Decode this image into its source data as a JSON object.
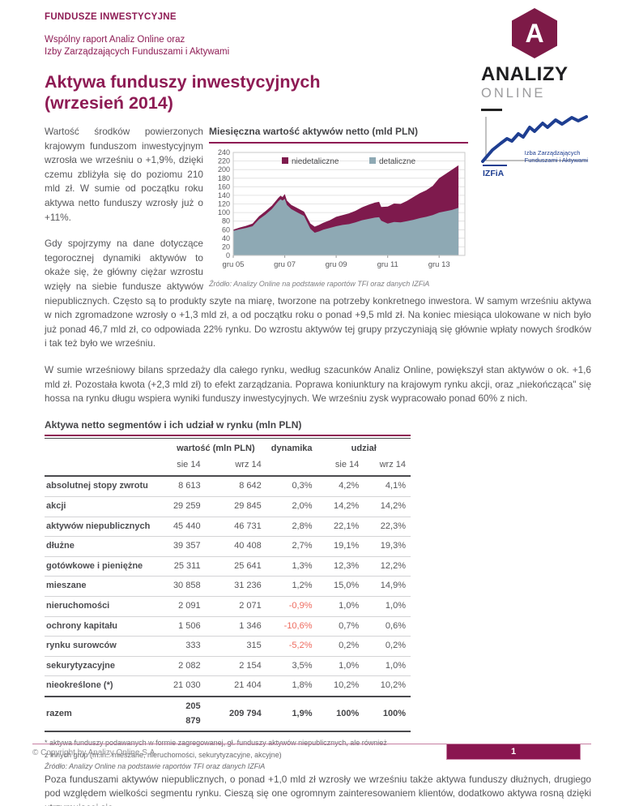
{
  "header": {
    "eyebrow": "FUNDUSZE INWESTYCYJNE",
    "subtitle_line1": "Wspólny raport Analiz Online oraz",
    "subtitle_line2": "Izby Zarządzających Funduszami i Aktywami",
    "title_line1": "Aktywa funduszy inwestycyjnych",
    "title_line2": "(wrzesień 2014)"
  },
  "logo": {
    "monogram": "A",
    "brand_top": "ANALIZY",
    "brand_bottom": "ONLINE"
  },
  "izfia": {
    "line1": "Izba Zarządzających",
    "line2": "Funduszami i Aktywami",
    "abbr": "IZFiA"
  },
  "paragraphs": {
    "p1": "Wartość środków powierzonych krajowym funduszom inwestycyjnym wzrosła we wrześniu o +1,9%, dzięki czemu zbliżyła się do poziomu 210 mld zł. W sumie od początku roku aktywa netto funduszy wzrosły już o +11%.",
    "p2": "Gdy spojrzymy na dane dotyczące tegorocznej dynamiki aktywów to okaże się, że główny ciężar wzrostu wzięły na siebie fundusze aktywów niepublicznych. Często są to produkty szyte na miarę, tworzone na potrzeby konkretnego inwestora.  W samym wrześniu aktywa w nich zgromadzone wzrosły o +1,3 mld zł, a od początku roku o ponad +9,5 mld zł. Na koniec miesiąca ulokowane w nich było już ponad 46,7 mld zł, co odpowiada 22% rynku. Do wzrostu aktywów tej grupy przyczyniają się głównie wpłaty nowych środków i tak też było we wrześniu.",
    "p3": "W sumie wrześniowy bilans sprzedaży dla całego rynku, według szacunków Analiz Online, powiększył stan aktywów o ok. +1,6 mld zł. Pozostała kwota (+2,3 mld zł) to efekt zarządzania. Poprawa koniunktury na krajowym rynku akcji, oraz „niekończąca\" się hossa na rynku długu wspiera wyniki funduszy inwestycyjnych. We wrześniu zysk wypracowało ponad 60% z nich.",
    "p4": "Poza funduszami aktywów niepublicznych, o ponad +1,0 mld zł wzrosły we wrześniu także aktywa funduszy dłużnych, drugiego pod względem wielkości segmentu rynku. Cieszą się one ogromnym zainteresowaniem klientów, dodatkowo aktywa rosną dzięki utrzymującej się"
  },
  "chart": {
    "title": "Miesięczna wartość aktywów netto (mld PLN)",
    "source": "Źródło: Analizy Online na podstawie raportów TFI oraz danych IZFiA"
  },
  "chart_data": {
    "type": "area",
    "stacked": true,
    "title": "Miesięczna wartość aktywów netto (mld PLN)",
    "ylim": [
      0,
      240
    ],
    "ytick_step": 20,
    "grid": true,
    "legend_position": "top",
    "x_domain_months": 108,
    "x_months": [
      0,
      3,
      6,
      9,
      12,
      15,
      18,
      21,
      22,
      23,
      24,
      25,
      27,
      30,
      33,
      36,
      38,
      40,
      42,
      45,
      48,
      51,
      54,
      57,
      60,
      63,
      66,
      68,
      69,
      72,
      75,
      78,
      81,
      84,
      87,
      90,
      93,
      96,
      99,
      102,
      105
    ],
    "xticks": [
      {
        "label": "gru 05",
        "month": 0
      },
      {
        "label": "gru 07",
        "month": 24
      },
      {
        "label": "gru 09",
        "month": 48
      },
      {
        "label": "gru 11",
        "month": 72
      },
      {
        "label": "gru 13",
        "month": 96
      }
    ],
    "series": [
      {
        "name": "niedetaliczne",
        "color": "#7e1a4d",
        "values": [
          3,
          4,
          5,
          6,
          7,
          8,
          8,
          8,
          8,
          8,
          11,
          10,
          10,
          10,
          10,
          12,
          14,
          15,
          16,
          18,
          22,
          23,
          25,
          27,
          30,
          33,
          35,
          36,
          32,
          40,
          43,
          43,
          47,
          53,
          58,
          62,
          68,
          80,
          87,
          94,
          99
        ]
      },
      {
        "name": "detaliczne",
        "color": "#8ea9b4",
        "values": [
          57,
          61,
          64,
          68,
          84,
          95,
          108,
          126,
          131,
          128,
          132,
          118,
          108,
          100,
          92,
          62,
          53,
          56,
          60,
          64,
          68,
          71,
          73,
          77,
          82,
          85,
          88,
          89,
          81,
          74,
          78,
          77,
          80,
          83,
          87,
          90,
          94,
          100,
          103,
          106,
          111
        ]
      }
    ]
  },
  "table": {
    "title": "Aktywa netto segmentów i ich udział w rynku (mln PLN)",
    "group_value": "wartość (mln PLN)",
    "group_dynamics": "dynamika",
    "group_share": "udział",
    "period_prev": "sie 14",
    "period_curr": "wrz 14",
    "rows": [
      {
        "label": "absolutnej stopy zwrotu",
        "value_prev": "8 613",
        "value_curr": "8 642",
        "dynamics": "0,3%",
        "share_prev": "4,2%",
        "share_curr": "4,1%"
      },
      {
        "label": "akcji",
        "value_prev": "29 259",
        "value_curr": "29 845",
        "dynamics": "2,0%",
        "share_prev": "14,2%",
        "share_curr": "14,2%"
      },
      {
        "label": "aktywów niepublicznych",
        "value_prev": "45 440",
        "value_curr": "46 731",
        "dynamics": "2,8%",
        "share_prev": "22,1%",
        "share_curr": "22,3%"
      },
      {
        "label": "dłużne",
        "value_prev": "39 357",
        "value_curr": "40 408",
        "dynamics": "2,7%",
        "share_prev": "19,1%",
        "share_curr": "19,3%"
      },
      {
        "label": "gotówkowe i pieniężne",
        "value_prev": "25 311",
        "value_curr": "25 641",
        "dynamics": "1,3%",
        "share_prev": "12,3%",
        "share_curr": "12,2%"
      },
      {
        "label": "mieszane",
        "value_prev": "30 858",
        "value_curr": "31 236",
        "dynamics": "1,2%",
        "share_prev": "15,0%",
        "share_curr": "14,9%"
      },
      {
        "label": "nieruchomości",
        "value_prev": "2 091",
        "value_curr": "2 071",
        "dynamics": "-0,9%",
        "share_prev": "1,0%",
        "share_curr": "1,0%"
      },
      {
        "label": "ochrony kapitału",
        "value_prev": "1 506",
        "value_curr": "1 346",
        "dynamics": "-10,6%",
        "share_prev": "0,7%",
        "share_curr": "0,6%"
      },
      {
        "label": "rynku surowców",
        "value_prev": "333",
        "value_curr": "315",
        "dynamics": "-5,2%",
        "share_prev": "0,2%",
        "share_curr": "0,2%"
      },
      {
        "label": "sekurytyzacyjne",
        "value_prev": "2 082",
        "value_curr": "2 154",
        "dynamics": "3,5%",
        "share_prev": "1,0%",
        "share_curr": "1,0%"
      },
      {
        "label": "nieokreślone (*)",
        "value_prev": "21 030",
        "value_curr": "21 404",
        "dynamics": "1,8%",
        "share_prev": "10,2%",
        "share_curr": "10,2%"
      }
    ],
    "total": {
      "label": "razem",
      "value_prev": "205 879",
      "value_curr": "209 794",
      "dynamics": "1,9%",
      "share_prev": "100%",
      "share_curr": "100%"
    },
    "footnote_line1": "* aktywa funduszy podawanych w formie zagregowanej, gł. funduszy aktywów niepublicznych, ale również",
    "footnote_line2": "z innych grup (m.in.: mieszane, nieruchomości, sekurytyzacyjne, akcyjne)",
    "source": "Źródło: Analizy Online na podstawie raportów TFI oraz danych IZFiA"
  },
  "footer": {
    "copyright": "© Copyright by Analizy Online S.A.",
    "page_number": "1"
  },
  "colors": {
    "maroon": "#8e1b54",
    "chart_niedetaliczne": "#7e1a4d",
    "chart_detaliczne": "#8ea9b4",
    "negative_value": "#ee6a5e",
    "izfia_navy": "#1e3e91"
  }
}
